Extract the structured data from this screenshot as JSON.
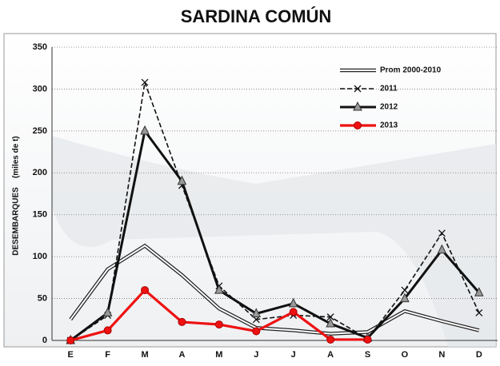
{
  "chart_data": {
    "type": "line",
    "title": "SARDINA COMÚN",
    "ylabel": "DESEMBARQUES    (miles de t)",
    "categories": [
      "E",
      "F",
      "M",
      "A",
      "M",
      "J",
      "J",
      "A",
      "S",
      "O",
      "N",
      "D"
    ],
    "ylim": [
      0,
      350
    ],
    "yticks": [
      0,
      50,
      100,
      150,
      200,
      250,
      300,
      350
    ],
    "grid": true,
    "legend": "upper right",
    "series": [
      {
        "name": "Prom 2000-2010",
        "color": "#222222",
        "style": "double",
        "marker": "none",
        "values": [
          25,
          85,
          113,
          78,
          38,
          15,
          12,
          8,
          10,
          35,
          23,
          12
        ]
      },
      {
        "name": "2011",
        "color": "#111111",
        "style": "dashed",
        "marker": "x",
        "values": [
          0,
          30,
          308,
          185,
          65,
          25,
          30,
          28,
          2,
          60,
          128,
          33
        ]
      },
      {
        "name": "2012",
        "color": "#111111",
        "style": "solid",
        "marker": "triangle",
        "values": [
          0,
          33,
          250,
          190,
          60,
          32,
          44,
          20,
          3,
          50,
          108,
          57
        ]
      },
      {
        "name": "2013",
        "color": "#ee1111",
        "style": "solid",
        "marker": "circle",
        "values": [
          0,
          12,
          60,
          22,
          19,
          11,
          34,
          1,
          1,
          null,
          null,
          null
        ]
      }
    ]
  }
}
